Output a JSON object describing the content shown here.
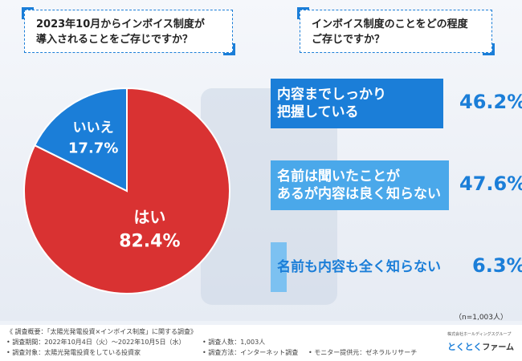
{
  "questions": {
    "q1": [
      "2023年10月からインボイス制度が",
      "導入されることをご存じですか？"
    ],
    "q2": [
      "インボイス制度のことをどの程度",
      "ご存じですか？"
    ]
  },
  "colors": {
    "red": "#d93232",
    "blue": "#1b7ed8",
    "light_blue": "#4aa8ea",
    "lighter_blue": "#7cc1f1",
    "accent": "#1b7ed8"
  },
  "chart_data": [
    {
      "type": "pie",
      "slices": [
        {
          "label": "はい",
          "value": 82.4,
          "display": "82.4%",
          "color": "#d93232"
        },
        {
          "label": "いいえ",
          "value": 17.7,
          "display": "17.7%",
          "color": "#1b7ed8"
        }
      ]
    },
    {
      "type": "bar",
      "categories": [
        [
          "内容までしっかり",
          "把握している"
        ],
        [
          "名前は聞いたことが",
          "あるが内容は良く知らない"
        ],
        [
          "名前も内容も全く知らない"
        ]
      ],
      "values": [
        46.2,
        47.6,
        6.3
      ],
      "displays": [
        "46.2%",
        "47.6%",
        "6.3%"
      ]
    }
  ],
  "note_n": "（n=1,003人）",
  "footer": {
    "line1": "《 調査概要：「太陽光発電投資×インボイス制度」に関する調査》",
    "line2a": "• 調査期間：2022年10月4日（火）～2022年10月5日（水）",
    "line2b": "• 調査人数：1,003人",
    "line3a": "• 調査対象：太陽光発電投資をしている投資家",
    "line3b": "• 調査方法：インターネット調査",
    "line3c": "• モニター提供元：ゼネラルリサーチ"
  },
  "logo": {
    "small": "株式会社ホールディングスグループ",
    "main_red": "とくとく",
    "main_rest": "ファーム"
  }
}
